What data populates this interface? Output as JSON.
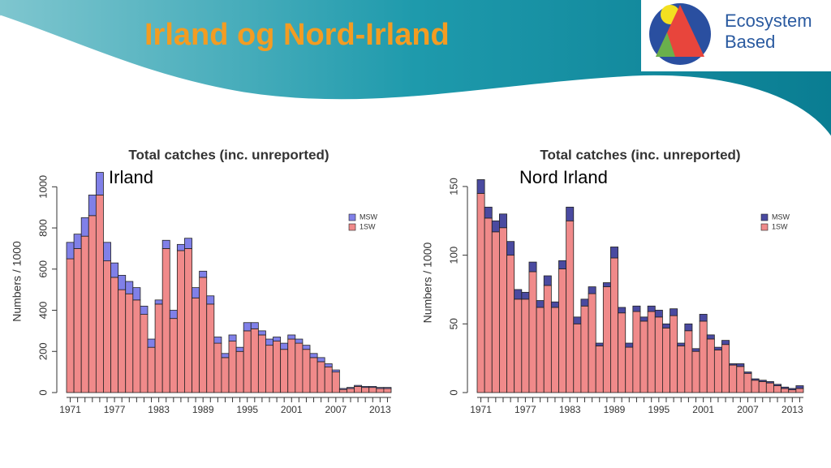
{
  "slide": {
    "title": "Irland og Nord-Irland",
    "logo": [
      "Ecosystem",
      "Based"
    ]
  },
  "chart_data": [
    {
      "type": "bar",
      "stacked": true,
      "title": "Total catches (inc. unreported)",
      "annotation": "Irland",
      "ylabel": "Numbers / 1000",
      "categories": [
        "1971",
        null,
        null,
        null,
        null,
        null,
        "1977",
        null,
        null,
        null,
        null,
        null,
        "1983",
        null,
        null,
        null,
        null,
        null,
        "1989",
        null,
        null,
        null,
        null,
        null,
        "1995",
        null,
        null,
        null,
        null,
        null,
        "2001",
        null,
        null,
        null,
        null,
        null,
        "2007",
        null,
        null,
        null,
        null,
        null,
        "2013",
        null
      ],
      "series": [
        {
          "name": "1SW",
          "color": "#f08a8a",
          "values": [
            650,
            700,
            760,
            860,
            960,
            640,
            560,
            500,
            480,
            450,
            380,
            220,
            430,
            700,
            360,
            690,
            700,
            460,
            560,
            430,
            240,
            170,
            250,
            200,
            300,
            310,
            280,
            230,
            250,
            210,
            260,
            240,
            210,
            170,
            150,
            125,
            100,
            15,
            20,
            30,
            25,
            25,
            20,
            20
          ]
        },
        {
          "name": "MSW",
          "color": "#8080e8",
          "values": [
            80,
            70,
            90,
            100,
            110,
            90,
            70,
            70,
            60,
            60,
            40,
            40,
            20,
            40,
            40,
            30,
            50,
            50,
            30,
            40,
            30,
            20,
            30,
            20,
            40,
            30,
            20,
            30,
            20,
            30,
            20,
            20,
            20,
            20,
            20,
            15,
            10,
            5,
            5,
            5,
            5,
            5,
            5,
            5
          ]
        }
      ],
      "ylim": [
        0,
        1080
      ],
      "yticks": [
        0,
        200,
        400,
        600,
        800,
        1000
      ],
      "legend": "top-right"
    },
    {
      "type": "bar",
      "stacked": true,
      "title": "Total catches (inc. unreported)",
      "annotation": "Nord Irland",
      "ylabel": "Numbers / 1000",
      "categories": [
        "1971",
        null,
        null,
        null,
        null,
        null,
        "1977",
        null,
        null,
        null,
        null,
        null,
        "1983",
        null,
        null,
        null,
        null,
        null,
        "1989",
        null,
        null,
        null,
        null,
        null,
        "1995",
        null,
        null,
        null,
        null,
        null,
        "2001",
        null,
        null,
        null,
        null,
        null,
        "2007",
        null,
        null,
        null,
        null,
        null,
        "2013",
        null
      ],
      "series": [
        {
          "name": "1SW",
          "color": "#f08a8a",
          "values": [
            145,
            127,
            117,
            120,
            100,
            68,
            68,
            88,
            62,
            78,
            62,
            90,
            125,
            50,
            63,
            72,
            34,
            77,
            98,
            58,
            33,
            59,
            52,
            59,
            55,
            47,
            56,
            34,
            45,
            30,
            52,
            39,
            31,
            35,
            20,
            19,
            14,
            9,
            8,
            7,
            5,
            3,
            2,
            3
          ]
        },
        {
          "name": "MSW",
          "color": "#4a4aa0",
          "values": [
            10,
            8,
            8,
            10,
            10,
            7,
            5,
            7,
            5,
            7,
            4,
            6,
            10,
            5,
            5,
            5,
            2,
            3,
            8,
            4,
            3,
            4,
            3,
            4,
            5,
            3,
            5,
            2,
            5,
            2,
            5,
            3,
            2,
            3,
            1,
            2,
            1,
            1,
            1,
            1,
            1,
            1,
            1,
            2
          ]
        }
      ],
      "ylim": [
        0,
        160
      ],
      "yticks": [
        0,
        50,
        100,
        150
      ],
      "legend": "top-right"
    }
  ]
}
